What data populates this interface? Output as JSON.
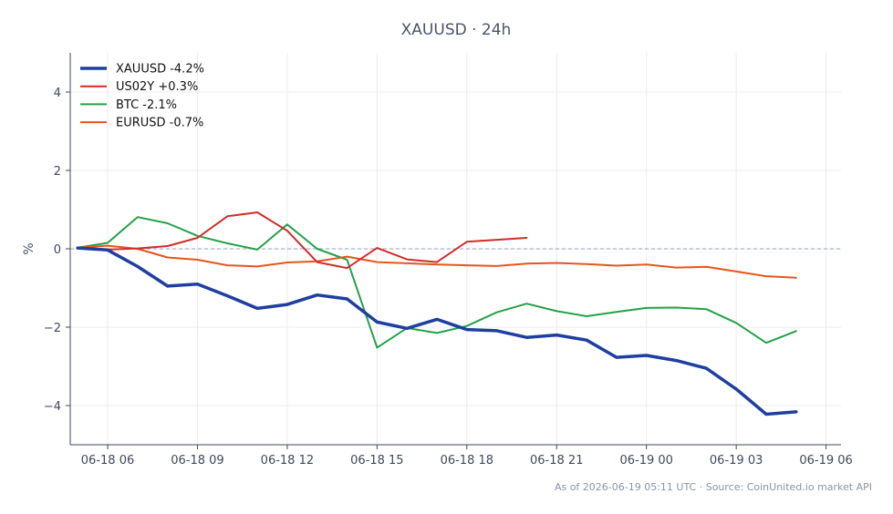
{
  "chart_data": {
    "type": "line",
    "title": "XAUUSD · 24h",
    "xlabel": "",
    "ylabel": "%",
    "ylim": [
      -5,
      5
    ],
    "xlim": [
      "2026-06-18 04:45",
      "2026-06-19 06:30"
    ],
    "grid": true,
    "legend_position": "top-left",
    "reference_line": {
      "y": 0,
      "style": "dashed",
      "color": "#8fa3bf"
    },
    "x_ticks": [
      {
        "x": "2026-06-18 06:00",
        "label": "06-18 06"
      },
      {
        "x": "2026-06-18 09:00",
        "label": "06-18 09"
      },
      {
        "x": "2026-06-18 12:00",
        "label": "06-18 12"
      },
      {
        "x": "2026-06-18 15:00",
        "label": "06-18 15"
      },
      {
        "x": "2026-06-18 18:00",
        "label": "06-18 18"
      },
      {
        "x": "2026-06-18 21:00",
        "label": "06-18 21"
      },
      {
        "x": "2026-06-19 00:00",
        "label": "06-19 00"
      },
      {
        "x": "2026-06-19 03:00",
        "label": "06-19 03"
      },
      {
        "x": "2026-06-19 06:00",
        "label": "06-19 06"
      }
    ],
    "y_ticks": [
      {
        "y": 4,
        "label": "4"
      },
      {
        "y": 2,
        "label": "2"
      },
      {
        "y": 0,
        "label": "0"
      },
      {
        "y": -2,
        "label": "−2"
      },
      {
        "y": -4,
        "label": "−4"
      }
    ],
    "series": [
      {
        "name": "XAUUSD -4.2%",
        "color": "#1f3fa0",
        "x": [
          "2026-06-18 05:00",
          "2026-06-18 06:00",
          "2026-06-18 07:00",
          "2026-06-18 08:00",
          "2026-06-18 09:00",
          "2026-06-18 10:00",
          "2026-06-18 11:00",
          "2026-06-18 12:00",
          "2026-06-18 13:00",
          "2026-06-18 14:00",
          "2026-06-18 15:00",
          "2026-06-18 16:00",
          "2026-06-18 17:00",
          "2026-06-18 18:00",
          "2026-06-18 19:00",
          "2026-06-18 20:00",
          "2026-06-18 21:00",
          "2026-06-18 22:00",
          "2026-06-18 23:00",
          "2026-06-19 00:00",
          "2026-06-19 01:00",
          "2026-06-19 02:00",
          "2026-06-19 03:00",
          "2026-06-19 04:00",
          "2026-06-19 05:00"
        ],
        "y": [
          0.02,
          -0.03,
          -0.45,
          -0.95,
          -0.9,
          -1.2,
          -1.52,
          -1.42,
          -1.18,
          -1.28,
          -1.87,
          -2.03,
          -1.8,
          -2.06,
          -2.09,
          -2.26,
          -2.2,
          -2.33,
          -2.77,
          -2.72,
          -2.85,
          -3.05,
          -3.58,
          -4.22,
          -4.16
        ]
      },
      {
        "name": "US02Y +0.3%",
        "color": "#d12c2c",
        "x": [
          "2026-06-18 05:00",
          "2026-06-18 06:00",
          "2026-06-18 07:00",
          "2026-06-18 08:00",
          "2026-06-18 09:00",
          "2026-06-18 10:00",
          "2026-06-18 11:00",
          "2026-06-18 12:00",
          "2026-06-18 13:00",
          "2026-06-18 14:00",
          "2026-06-18 15:00",
          "2026-06-18 16:00",
          "2026-06-18 17:00",
          "2026-06-18 18:00",
          "2026-06-18 19:00",
          "2026-06-18 20:00"
        ],
        "y": [
          0.02,
          -0.02,
          0.01,
          0.07,
          0.28,
          0.83,
          0.93,
          0.46,
          -0.34,
          -0.49,
          0.02,
          -0.27,
          -0.34,
          0.18,
          0.23,
          0.28
        ]
      },
      {
        "name": "BTC -2.1%",
        "color": "#24a148",
        "x": [
          "2026-06-18 05:00",
          "2026-06-18 06:00",
          "2026-06-18 07:00",
          "2026-06-18 08:00",
          "2026-06-18 09:00",
          "2026-06-18 10:00",
          "2026-06-18 11:00",
          "2026-06-18 12:00",
          "2026-06-18 13:00",
          "2026-06-18 14:00",
          "2026-06-18 15:00",
          "2026-06-18 16:00",
          "2026-06-18 17:00",
          "2026-06-18 18:00",
          "2026-06-18 19:00",
          "2026-06-18 20:00",
          "2026-06-18 21:00",
          "2026-06-18 22:00",
          "2026-06-18 23:00",
          "2026-06-19 00:00",
          "2026-06-19 01:00",
          "2026-06-19 02:00",
          "2026-06-19 03:00",
          "2026-06-19 04:00",
          "2026-06-19 05:00"
        ],
        "y": [
          0.03,
          0.15,
          0.81,
          0.65,
          0.33,
          0.14,
          -0.02,
          0.62,
          0.0,
          -0.28,
          -2.52,
          -2.02,
          -2.15,
          -1.97,
          -1.62,
          -1.4,
          -1.59,
          -1.72,
          -1.61,
          -1.51,
          -1.5,
          -1.54,
          -1.89,
          -2.4,
          -2.1
        ]
      },
      {
        "name": "EURUSD -0.7%",
        "color": "#e5561a",
        "x": [
          "2026-06-18 05:00",
          "2026-06-18 06:00",
          "2026-06-18 07:00",
          "2026-06-18 08:00",
          "2026-06-18 09:00",
          "2026-06-18 10:00",
          "2026-06-18 11:00",
          "2026-06-18 12:00",
          "2026-06-18 13:00",
          "2026-06-18 14:00",
          "2026-06-18 15:00",
          "2026-06-18 16:00",
          "2026-06-18 17:00",
          "2026-06-18 18:00",
          "2026-06-18 19:00",
          "2026-06-18 20:00",
          "2026-06-18 21:00",
          "2026-06-18 22:00",
          "2026-06-18 23:00",
          "2026-06-19 00:00",
          "2026-06-19 01:00",
          "2026-06-19 02:00",
          "2026-06-19 03:00",
          "2026-06-19 04:00",
          "2026-06-19 05:00"
        ],
        "y": [
          0.03,
          0.08,
          0.0,
          -0.22,
          -0.28,
          -0.42,
          -0.45,
          -0.35,
          -0.32,
          -0.2,
          -0.34,
          -0.37,
          -0.4,
          -0.42,
          -0.44,
          -0.38,
          -0.36,
          -0.39,
          -0.43,
          -0.4,
          -0.48,
          -0.46,
          -0.58,
          -0.7,
          -0.74
        ]
      }
    ],
    "footnote": "As of 2026-06-19 05:11 UTC · Source: CoinUnited.io market API"
  }
}
